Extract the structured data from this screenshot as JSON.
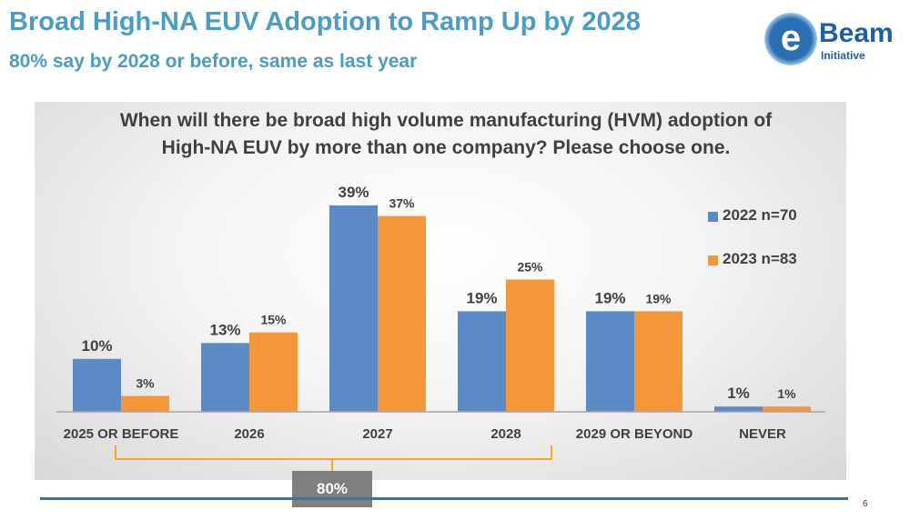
{
  "slide": {
    "title": "Broad High-NA EUV Adoption to Ramp Up by 2028",
    "subtitle": "80% say by 2028 or before, same as last year",
    "page_number": "6"
  },
  "logo": {
    "mark": "e",
    "word": "Beam",
    "sub": "Initiative"
  },
  "chart_data": {
    "type": "bar",
    "title": "When will there be broad high volume manufacturing (HVM) adoption of High-NA EUV by more than one company? Please choose one.",
    "categories": [
      "2025 OR BEFORE",
      "2026",
      "2027",
      "2028",
      "2029 OR BEYOND",
      "NEVER"
    ],
    "series": [
      {
        "name": "2022 n=70",
        "color": "#5b8ac6",
        "values": [
          10,
          13,
          39,
          19,
          19,
          1
        ],
        "labels": [
          "10%",
          "13%",
          "39%",
          "19%",
          "19%",
          "1%"
        ]
      },
      {
        "name": "2023 n=83",
        "color": "#f5963a",
        "values": [
          3,
          15,
          37,
          25,
          19,
          1
        ],
        "labels": [
          "3%",
          "15%",
          "37%",
          "25%",
          "19%",
          "1%"
        ]
      }
    ],
    "ylim": [
      0,
      45
    ],
    "grid": false,
    "legend_position": "right",
    "annotation": {
      "text": "80%",
      "spans_categories": [
        "2025 OR BEFORE",
        "2026",
        "2027",
        "2028"
      ],
      "bracket_color": "#f5a623",
      "label_color": "#7f7f7f"
    }
  }
}
